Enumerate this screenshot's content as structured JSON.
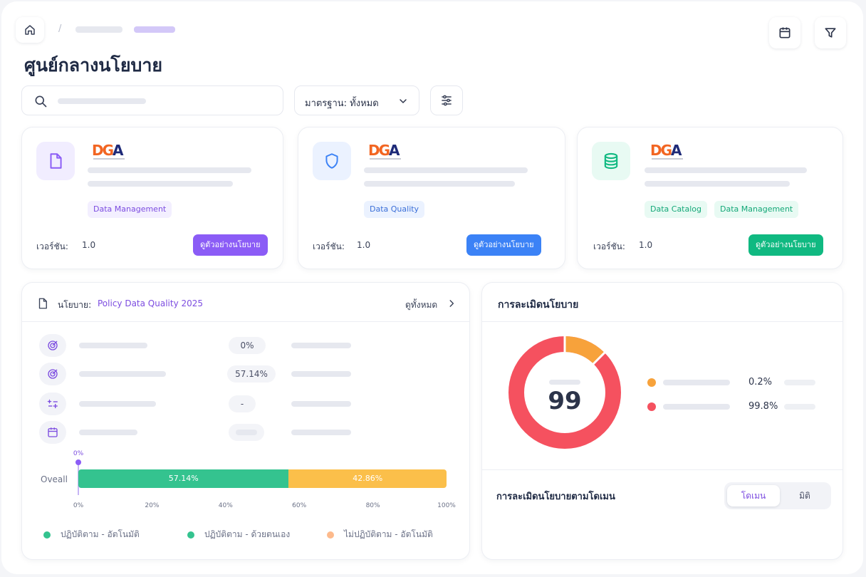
{
  "page": {
    "title": "ศูนย์กลางนโยบาย"
  },
  "filters": {
    "standard_label": "มาตรฐาน: ทั้งหมด"
  },
  "icons": {
    "home": "home-icon",
    "calendar": "calendar-icon",
    "filter": "filter-icon",
    "search": "search-icon",
    "settings": "sliders-icon"
  },
  "logo": {
    "text": "DGA"
  },
  "policy_cards": [
    {
      "icon": "document-icon",
      "accent": "#8b5cf6",
      "tags": [
        "Data Management"
      ],
      "version_label": "เวอร์ชัน:",
      "version": "1.0",
      "button_label": "ดูตัวอย่างนโยบาย"
    },
    {
      "icon": "shield-icon",
      "accent": "#3b82f6",
      "tags": [
        "Data Quality"
      ],
      "version_label": "เวอร์ชัน:",
      "version": "1.0",
      "button_label": "ดูตัวอย่างนโยบาย"
    },
    {
      "icon": "database-icon",
      "accent": "#10b981",
      "tags": [
        "Data Catalog",
        "Data Management"
      ],
      "version_label": "เวอร์ชัน:",
      "version": "1.0",
      "button_label": "ดูตัวอย่างนโยบาย"
    }
  ],
  "policy_detail": {
    "label": "นโยบาย:",
    "name": "Policy Data Quality 2025",
    "view_all": "ดูทั้งหมด",
    "rows": [
      {
        "icon": "target-icon",
        "value": "0%"
      },
      {
        "icon": "target-icon",
        "value": "57.14%"
      },
      {
        "icon": "sparkle-list-icon",
        "value": "-"
      },
      {
        "icon": "calendar-icon",
        "value": ""
      }
    ]
  },
  "violation": {
    "title": "การละเมิดนโยบาย",
    "total": "99",
    "items": [
      {
        "color": "#f7a23b",
        "value": "0.2%"
      },
      {
        "color": "#f5515f",
        "value": "99.8%"
      }
    ],
    "by_domain_title": "การละเมิดนโยบายตามโดเมน",
    "toggle": [
      "โดเมน",
      "มิติ"
    ]
  },
  "chart_data": [
    {
      "type": "bar",
      "orientation": "horizontal-stacked",
      "categories": [
        "Oveall"
      ],
      "series": [
        {
          "name": "ปฏิบัติตาม - อัตโนมัติ",
          "values": [
            0
          ],
          "color": "#34c38f"
        },
        {
          "name": "ปฏิบัติตาม - ด้วยตนเอง",
          "values": [
            57.14
          ],
          "color": "#34c38f"
        },
        {
          "name": "ไม่ปฏิบัติตาม - อัตโนมัติ",
          "values": [
            42.86
          ],
          "color": "#fbbf4a"
        }
      ],
      "data_labels": [
        "0%",
        "57.14%",
        "42.86%"
      ],
      "xlim": [
        0,
        100
      ],
      "xticks": [
        "0%",
        "20%",
        "40%",
        "60%",
        "80%",
        "100%"
      ],
      "legend": "bottom",
      "legend_colors": [
        "#34c38f",
        "#34c38f",
        "#fdba8c"
      ]
    },
    {
      "type": "pie",
      "variant": "donut",
      "center_value": "99",
      "slices": [
        {
          "value": 0.2,
          "label": "0.2%",
          "color": "#f7a23b"
        },
        {
          "value": 99.8,
          "label": "99.8%",
          "color": "#f5515f"
        }
      ]
    }
  ]
}
